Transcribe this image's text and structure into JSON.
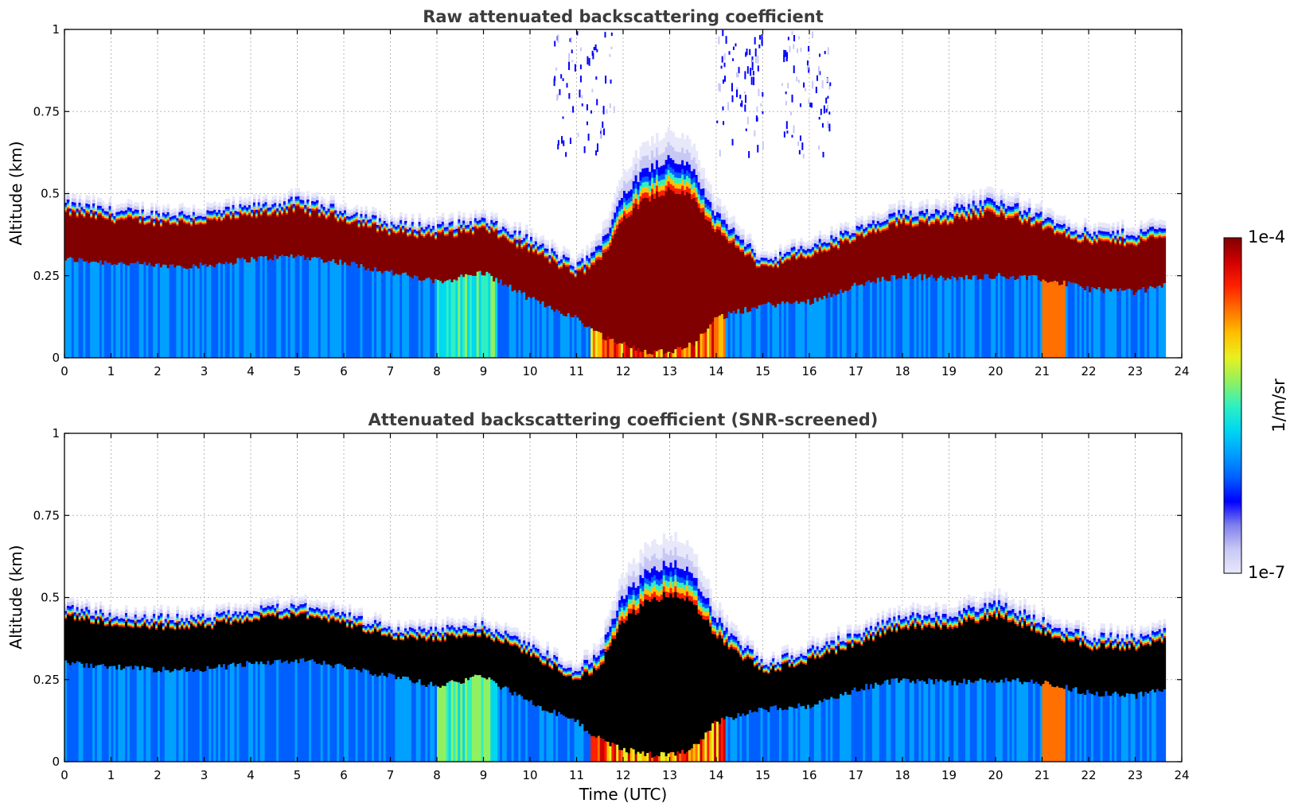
{
  "chart_data": [
    {
      "type": "heatmap",
      "title": "Raw attenuated backscattering coefficient",
      "xlabel": "",
      "ylabel": "Altitude (km)",
      "xlim": [
        0,
        24
      ],
      "ylim": [
        0,
        1
      ],
      "xticks": [
        "0",
        "1",
        "2",
        "3",
        "4",
        "5",
        "6",
        "7",
        "8",
        "9",
        "10",
        "11",
        "12",
        "13",
        "14",
        "15",
        "16",
        "17",
        "18",
        "19",
        "20",
        "21",
        "22",
        "23",
        "24"
      ],
      "yticks": [
        "0",
        "0.25",
        "0.5",
        "0.75",
        "1"
      ],
      "grid": true,
      "data_end_time": 23.65,
      "layer_top_km": [
        [
          0,
          0.46
        ],
        [
          1,
          0.44
        ],
        [
          2,
          0.43
        ],
        [
          3,
          0.43
        ],
        [
          4,
          0.45
        ],
        [
          5,
          0.47
        ],
        [
          6,
          0.44
        ],
        [
          7,
          0.4
        ],
        [
          8,
          0.39
        ],
        [
          9,
          0.41
        ],
        [
          10,
          0.35
        ],
        [
          11,
          0.27
        ],
        [
          11.5,
          0.32
        ],
        [
          12,
          0.48
        ],
        [
          12.5,
          0.55
        ],
        [
          13,
          0.58
        ],
        [
          13.5,
          0.55
        ],
        [
          14,
          0.42
        ],
        [
          15,
          0.29
        ],
        [
          16,
          0.33
        ],
        [
          17,
          0.38
        ],
        [
          18,
          0.43
        ],
        [
          19,
          0.44
        ],
        [
          20,
          0.47
        ],
        [
          21,
          0.42
        ],
        [
          22,
          0.37
        ],
        [
          23,
          0.37
        ],
        [
          23.65,
          0.39
        ]
      ],
      "layer_bottom_km": [
        [
          0,
          0.3
        ],
        [
          1,
          0.29
        ],
        [
          2,
          0.28
        ],
        [
          3,
          0.28
        ],
        [
          4,
          0.3
        ],
        [
          5,
          0.31
        ],
        [
          6,
          0.29
        ],
        [
          7,
          0.26
        ],
        [
          8,
          0.23
        ],
        [
          9,
          0.26
        ],
        [
          10,
          0.18
        ],
        [
          11,
          0.12
        ],
        [
          11.5,
          0.07
        ],
        [
          12,
          0.04
        ],
        [
          12.5,
          0.02
        ],
        [
          13,
          0.02
        ],
        [
          13.5,
          0.04
        ],
        [
          14,
          0.12
        ],
        [
          15,
          0.16
        ],
        [
          16,
          0.17
        ],
        [
          17,
          0.22
        ],
        [
          18,
          0.25
        ],
        [
          19,
          0.24
        ],
        [
          20,
          0.25
        ],
        [
          21,
          0.24
        ],
        [
          22,
          0.21
        ],
        [
          23,
          0.2
        ],
        [
          23.65,
          0.22
        ]
      ]
    },
    {
      "type": "heatmap",
      "title": "Attenuated backscattering coefficient (SNR-screened)",
      "xlabel": "Time (UTC)",
      "ylabel": "Altitude (km)",
      "xlim": [
        0,
        24
      ],
      "ylim": [
        0,
        1
      ],
      "xticks": [
        "0",
        "1",
        "2",
        "3",
        "4",
        "5",
        "6",
        "7",
        "8",
        "9",
        "10",
        "11",
        "12",
        "13",
        "14",
        "15",
        "16",
        "17",
        "18",
        "19",
        "20",
        "21",
        "22",
        "23",
        "24"
      ],
      "yticks": [
        "0",
        "0.25",
        "0.5",
        "0.75",
        "1"
      ],
      "grid": true,
      "screened_color": "#000000"
    }
  ],
  "colorbar": {
    "label": "1/m/sr",
    "max_label": "1e-4",
    "min_label": "1e-7",
    "colormap": [
      "#e8e8fb",
      "#c8c8f5",
      "#8080ee",
      "#0000ff",
      "#0060ff",
      "#00a0ff",
      "#00d8f0",
      "#30f0c0",
      "#90f060",
      "#e8f020",
      "#ffc000",
      "#ff7000",
      "#ff2000",
      "#d00000",
      "#800000"
    ]
  }
}
